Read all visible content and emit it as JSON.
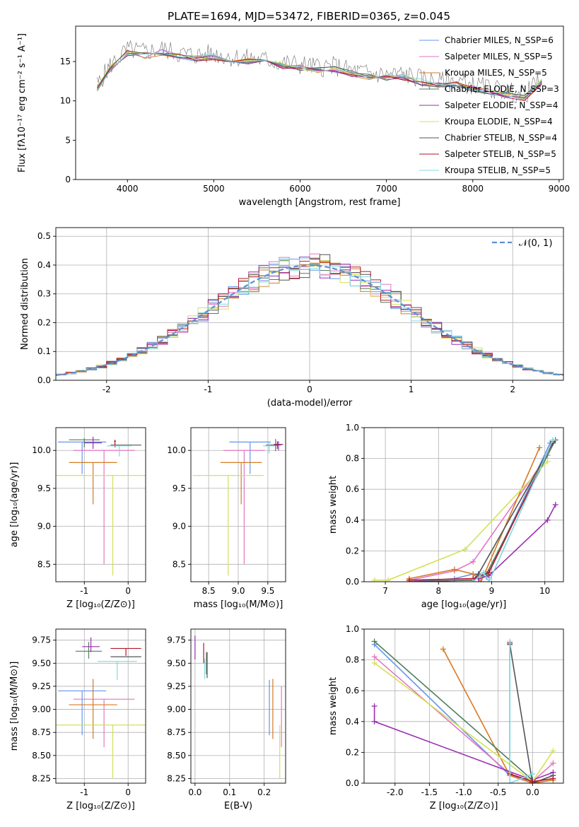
{
  "figure_title": "PLATE=1694, MJD=53472, FIBERID=0365, z=0.045",
  "chart_data": [
    {
      "id": "spectrum",
      "type": "line",
      "xlabel": "wavelength [Angstrom, rest frame]",
      "ylabel": "Flux [fλ10⁻¹⁷ erg cm⁻² s⁻¹ A⁻¹]",
      "xlim": [
        3400,
        9050
      ],
      "ylim": [
        0,
        19.5
      ],
      "xticks": [
        4000,
        5000,
        6000,
        7000,
        8000,
        9000
      ],
      "yticks": [
        0,
        5,
        10,
        15
      ],
      "grid": false,
      "legend_position": "top-right",
      "data_spectrum": {
        "name": "data",
        "color": "#808080",
        "x": [
          3650,
          3800,
          4000,
          4200,
          4400,
          4600,
          4800,
          5000,
          5200,
          5400,
          5600,
          5800,
          6000,
          6200,
          6400,
          6600,
          6800,
          7000,
          7200,
          7400,
          7600,
          7800,
          8000,
          8200,
          8400,
          8600,
          8800
        ],
        "y": [
          12.0,
          14.5,
          16.5,
          16.2,
          16.6,
          16.0,
          15.8,
          16.0,
          15.6,
          15.4,
          15.2,
          14.8,
          14.6,
          14.3,
          14.4,
          13.8,
          13.5,
          13.3,
          13.4,
          12.8,
          12.4,
          12.6,
          12.0,
          11.6,
          11.2,
          10.8,
          12.8
        ]
      },
      "series": [
        {
          "name": "Chabrier MILES, N_SSP=6",
          "color": "#6495ed"
        },
        {
          "name": "Salpeter MILES, N_SSP=5",
          "color": "#e377c2"
        },
        {
          "name": "Kroupa MILES, N_SSP=5",
          "color": "#d67a24"
        },
        {
          "name": "Chabrier ELODIE, N_SSP=3",
          "color": "#4f7f5f"
        },
        {
          "name": "Salpeter ELODIE, N_SSP=4",
          "color": "#9a2fb0"
        },
        {
          "name": "Kroupa ELODIE, N_SSP=4",
          "color": "#d4e157"
        },
        {
          "name": "Chabrier STELIB, N_SSP=4",
          "color": "#555555"
        },
        {
          "name": "Salpeter STELIB, N_SSP=5",
          "color": "#b2182b"
        },
        {
          "name": "Kroupa STELIB, N_SSP=5",
          "color": "#80d8e0"
        }
      ]
    },
    {
      "id": "residuals",
      "type": "histogram",
      "xlabel": "(data-model)/error",
      "ylabel": "Normed distribution",
      "xlim": [
        -2.5,
        2.5
      ],
      "ylim": [
        0,
        0.53
      ],
      "xticks": [
        -2,
        -1,
        0,
        1,
        2
      ],
      "yticks": [
        0.0,
        0.1,
        0.2,
        0.3,
        0.4,
        0.5
      ],
      "grid": true,
      "legend_position": "top-right",
      "legend": "𝒩(0, 1)",
      "reference_curve": {
        "name": "𝒩(0, 1)",
        "color": "#5b8fd6",
        "style": "dashed",
        "mean": 0,
        "sigma": 1
      },
      "histogram_bin_width": 0.1,
      "histogram_jitter_seeds": [
        3,
        7,
        11,
        17,
        23,
        29,
        31,
        37,
        41
      ]
    },
    {
      "id": "age_vs_Z",
      "type": "errorbar",
      "xlabel": "Z [log₁₀(Z/Z⊙)]",
      "ylabel": "age  [log₁₀(age/yr)]",
      "xlim": [
        -1.65,
        0.4
      ],
      "ylim": [
        8.27,
        10.3
      ],
      "xticks": [
        -1,
        0
      ],
      "yticks": [
        8.5,
        9.0,
        9.5,
        10.0
      ],
      "grid": true,
      "points": [
        {
          "x": -1.05,
          "y": 10.11,
          "xerr": 0.55,
          "yerr_lo": 0.42,
          "yerr_hi": 0.0,
          "color": "#6495ed"
        },
        {
          "x": -0.55,
          "y": 10.0,
          "xerr": 0.7,
          "yerr_lo": 1.5,
          "yerr_hi": 0.0,
          "color": "#e377c2"
        },
        {
          "x": -0.8,
          "y": 9.84,
          "xerr": 0.55,
          "yerr_lo": 0.55,
          "yerr_hi": 0.0,
          "color": "#d67a24"
        },
        {
          "x": -1.0,
          "y": 10.14,
          "xerr": 0.35,
          "yerr_lo": 0.1,
          "yerr_hi": 0.02,
          "color": "#4f7f5f"
        },
        {
          "x": -0.8,
          "y": 10.1,
          "xerr": 0.2,
          "yerr_lo": 0.08,
          "yerr_hi": 0.08,
          "color": "#9a2fb0"
        },
        {
          "x": -0.35,
          "y": 9.67,
          "xerr": 1.3,
          "yerr_lo": 1.32,
          "yerr_hi": 0.0,
          "color": "#d4e157"
        },
        {
          "x": -0.05,
          "y": 10.07,
          "xerr": 0.35,
          "yerr_lo": 0.0,
          "yerr_hi": 0.0,
          "color": "#555555"
        },
        {
          "x": -0.3,
          "y": 10.12,
          "xerr": 0.02,
          "yerr_lo": 0.08,
          "yerr_hi": 0.02,
          "color": "#b2182b"
        },
        {
          "x": -0.2,
          "y": 10.06,
          "xerr": 0.28,
          "yerr_lo": 0.14,
          "yerr_hi": 0.0,
          "color": "#80d8e0"
        }
      ]
    },
    {
      "id": "age_vs_mass",
      "type": "errorbar",
      "xlabel": "mass [log₁₀(M/M⊙)]",
      "ylabel": "",
      "xlim": [
        8.2,
        9.8
      ],
      "ylim": [
        8.27,
        10.3
      ],
      "xticks": [
        8.5,
        9.0,
        9.5
      ],
      "yticks": [
        8.5,
        9.0,
        9.5,
        10.0
      ],
      "grid": true,
      "points": [
        {
          "x": 9.2,
          "y": 10.11,
          "xerr": 0.35,
          "yerr_lo": 0.42,
          "yerr_hi": 0.0,
          "color": "#6495ed"
        },
        {
          "x": 9.1,
          "y": 10.0,
          "xerr": 0.35,
          "yerr_lo": 1.5,
          "yerr_hi": 0.0,
          "color": "#e377c2"
        },
        {
          "x": 9.05,
          "y": 9.84,
          "xerr": 0.35,
          "yerr_lo": 0.55,
          "yerr_hi": 0.0,
          "color": "#d67a24"
        },
        {
          "x": 9.63,
          "y": 10.07,
          "xerr": 0.1,
          "yerr_lo": 0.08,
          "yerr_hi": 0.08,
          "color": "#4f7f5f"
        },
        {
          "x": 9.68,
          "y": 10.08,
          "xerr": 0.08,
          "yerr_lo": 0.08,
          "yerr_hi": 0.04,
          "color": "#9a2fb0"
        },
        {
          "x": 8.83,
          "y": 9.67,
          "xerr": 0.6,
          "yerr_lo": 1.32,
          "yerr_hi": 0.0,
          "color": "#d4e157"
        },
        {
          "x": 9.57,
          "y": 10.07,
          "xerr": 0.1,
          "yerr_lo": 0.0,
          "yerr_hi": 0.0,
          "color": "#555555"
        },
        {
          "x": 9.66,
          "y": 10.08,
          "xerr": 0.02,
          "yerr_lo": 0.06,
          "yerr_hi": 0.04,
          "color": "#b2182b"
        },
        {
          "x": 9.52,
          "y": 10.06,
          "xerr": 0.1,
          "yerr_lo": 0.1,
          "yerr_hi": 0.04,
          "color": "#80d8e0"
        }
      ]
    },
    {
      "id": "massweight_vs_age",
      "type": "line",
      "xlabel": "age  [log₁₀(age/yr)]",
      "ylabel": "mass weight",
      "xlim": [
        6.6,
        10.35
      ],
      "ylim": [
        0,
        1.0
      ],
      "xticks": [
        7,
        8,
        9,
        10
      ],
      "yticks": [
        0.0,
        0.2,
        0.4,
        0.6,
        0.8,
        1.0
      ],
      "grid": true,
      "series": [
        {
          "name": "Chabrier MILES",
          "color": "#6495ed",
          "x": [
            7.45,
            8.3,
            8.65,
            8.9,
            10.1
          ],
          "y": [
            0.0,
            0.02,
            0.05,
            0.03,
            0.9
          ]
        },
        {
          "name": "Salpeter MILES",
          "color": "#e377c2",
          "x": [
            7.45,
            8.3,
            8.65,
            10.05
          ],
          "y": [
            0.01,
            0.07,
            0.13,
            0.82
          ]
        },
        {
          "name": "Kroupa MILES",
          "color": "#d67a24",
          "x": [
            7.45,
            8.3,
            8.65,
            8.8,
            9.9
          ],
          "y": [
            0.02,
            0.08,
            0.05,
            0.0,
            0.87
          ]
        },
        {
          "name": "Chabrier ELODIE",
          "color": "#4f7f5f",
          "x": [
            8.65,
            8.9,
            10.2
          ],
          "y": [
            0.02,
            0.05,
            0.92
          ]
        },
        {
          "name": "Salpeter ELODIE",
          "color": "#9a2fb0",
          "x": [
            8.75,
            8.95,
            10.05,
            10.2
          ],
          "y": [
            0.02,
            0.04,
            0.4,
            0.5
          ]
        },
        {
          "name": "Kroupa ELODIE",
          "color": "#d4e157",
          "x": [
            6.8,
            7.05,
            8.5,
            10.05
          ],
          "y": [
            0.01,
            0.01,
            0.21,
            0.78
          ]
        },
        {
          "name": "Chabrier STELIB",
          "color": "#555555",
          "x": [
            7.45,
            8.65,
            8.75,
            10.15
          ],
          "y": [
            0.0,
            0.01,
            0.05,
            0.9
          ]
        },
        {
          "name": "Salpeter STELIB",
          "color": "#b2182b",
          "x": [
            7.45,
            8.65,
            8.95,
            10.15
          ],
          "y": [
            0.01,
            0.02,
            0.06,
            0.91
          ]
        },
        {
          "name": "Kroupa STELIB",
          "color": "#80d8e0",
          "x": [
            8.65,
            8.85,
            8.95,
            10.15
          ],
          "y": [
            0.0,
            0.06,
            0.0,
            0.92
          ]
        }
      ]
    },
    {
      "id": "mass_vs_Z",
      "type": "errorbar",
      "xlabel": "Z [log₁₀(Z/Z⊙)]",
      "ylabel": "mass [log₁₀(M/M⊙)]",
      "xlim": [
        -1.65,
        0.4
      ],
      "ylim": [
        8.2,
        9.87
      ],
      "xticks": [
        -1,
        0
      ],
      "yticks": [
        8.25,
        8.5,
        8.75,
        9.0,
        9.25,
        9.5,
        9.75
      ],
      "grid": true,
      "points": [
        {
          "x": -1.05,
          "y": 9.2,
          "xerr": 0.55,
          "yerr_lo": 0.48,
          "yerr_hi": 0.0,
          "color": "#6495ed"
        },
        {
          "x": -0.55,
          "y": 9.11,
          "xerr": 0.7,
          "yerr_lo": 0.52,
          "yerr_hi": 0.0,
          "color": "#e377c2"
        },
        {
          "x": -0.8,
          "y": 9.05,
          "xerr": 0.55,
          "yerr_lo": 0.37,
          "yerr_hi": 0.28,
          "color": "#d67a24"
        },
        {
          "x": -0.9,
          "y": 9.63,
          "xerr": 0.3,
          "yerr_lo": 0.08,
          "yerr_hi": 0.1,
          "color": "#4f7f5f"
        },
        {
          "x": -0.85,
          "y": 9.68,
          "xerr": 0.2,
          "yerr_lo": 0.06,
          "yerr_hi": 0.1,
          "color": "#9a2fb0"
        },
        {
          "x": -0.35,
          "y": 8.83,
          "xerr": 1.3,
          "yerr_lo": 0.58,
          "yerr_hi": 0.0,
          "color": "#d4e157"
        },
        {
          "x": -0.05,
          "y": 9.57,
          "xerr": 0.35,
          "yerr_lo": 0.0,
          "yerr_hi": 0.0,
          "color": "#555555"
        },
        {
          "x": -0.05,
          "y": 9.66,
          "xerr": 0.35,
          "yerr_lo": 0.08,
          "yerr_hi": 0.0,
          "color": "#b2182b"
        },
        {
          "x": -0.25,
          "y": 9.52,
          "xerr": 0.45,
          "yerr_lo": 0.2,
          "yerr_hi": 0.0,
          "color": "#80d8e0"
        }
      ]
    },
    {
      "id": "mass_vs_ebv",
      "type": "errorbar",
      "xlabel": "E(B-V)",
      "ylabel": "",
      "xlim": [
        -0.012,
        0.262
      ],
      "ylim": [
        8.2,
        9.87
      ],
      "xticks": [
        0.0,
        0.1,
        0.2
      ],
      "yticks": [
        8.25,
        8.5,
        8.75,
        9.0,
        9.25,
        9.5,
        9.75
      ],
      "grid": true,
      "points": [
        {
          "x": 0.215,
          "y": 9.2,
          "xerr": 0.0,
          "yerr_lo": 0.48,
          "yerr_hi": 0.12,
          "color": "#6495ed"
        },
        {
          "x": 0.25,
          "y": 9.11,
          "xerr": 0.0,
          "yerr_lo": 0.52,
          "yerr_hi": 0.14,
          "color": "#e377c2"
        },
        {
          "x": 0.225,
          "y": 9.05,
          "xerr": 0.0,
          "yerr_lo": 0.37,
          "yerr_hi": 0.28,
          "color": "#d67a24"
        },
        {
          "x": 0.033,
          "y": 9.5,
          "xerr": 0.0,
          "yerr_lo": 0.12,
          "yerr_hi": 0.12,
          "color": "#4f7f5f"
        },
        {
          "x": 0.0,
          "y": 9.7,
          "xerr": 0.0,
          "yerr_lo": 0.16,
          "yerr_hi": 0.1,
          "color": "#9a2fb0"
        },
        {
          "x": 0.245,
          "y": 8.83,
          "xerr": 0.0,
          "yerr_lo": 0.58,
          "yerr_hi": 0.0,
          "color": "#d4e157"
        },
        {
          "x": 0.035,
          "y": 9.52,
          "xerr": 0.0,
          "yerr_lo": 0.18,
          "yerr_hi": 0.1,
          "color": "#555555"
        },
        {
          "x": 0.025,
          "y": 9.6,
          "xerr": 0.0,
          "yerr_lo": 0.1,
          "yerr_hi": 0.12,
          "color": "#b2182b"
        },
        {
          "x": 0.028,
          "y": 9.45,
          "xerr": 0.0,
          "yerr_lo": 0.12,
          "yerr_hi": 0.1,
          "color": "#80d8e0"
        }
      ]
    },
    {
      "id": "massweight_vs_Z",
      "type": "line",
      "xlabel": "Z [log₁₀(Z/Z⊙)]",
      "ylabel": "mass weight",
      "xlim": [
        -2.45,
        0.45
      ],
      "ylim": [
        0,
        1.0
      ],
      "xticks": [
        -2.0,
        -1.5,
        -1.0,
        -0.5,
        0.0
      ],
      "yticks": [
        0.0,
        0.2,
        0.4,
        0.6,
        0.8,
        1.0
      ],
      "grid": true,
      "series": [
        {
          "name": "Chabrier MILES",
          "color": "#6495ed",
          "x": [
            -2.3,
            -0.33,
            0.0
          ],
          "y": [
            0.9,
            0.05,
            0.02
          ]
        },
        {
          "name": "Salpeter MILES",
          "color": "#e377c2",
          "x": [
            -2.3,
            -0.33,
            0.0,
            0.3
          ],
          "y": [
            0.82,
            0.06,
            0.01,
            0.13
          ]
        },
        {
          "name": "Kroupa MILES",
          "color": "#d67a24",
          "x": [
            -1.3,
            -0.33,
            0.0,
            0.3
          ],
          "y": [
            0.87,
            0.05,
            0.0,
            0.02
          ]
        },
        {
          "name": "Chabrier ELODIE",
          "color": "#4f7f5f",
          "x": [
            -2.3,
            0.0
          ],
          "y": [
            0.92,
            0.02
          ]
        },
        {
          "name": "Salpeter ELODIE",
          "color": "#9a2fb0",
          "x": [
            -2.3,
            -2.3,
            0.0,
            0.3
          ],
          "y": [
            0.5,
            0.4,
            0.02,
            0.07
          ]
        },
        {
          "name": "Kroupa ELODIE",
          "color": "#d4e157",
          "x": [
            -2.3,
            0.0,
            0.3
          ],
          "y": [
            0.78,
            0.01,
            0.21
          ]
        },
        {
          "name": "Chabrier STELIB",
          "color": "#555555",
          "x": [
            -0.33,
            0.0,
            0.3
          ],
          "y": [
            0.9,
            0.0,
            0.05
          ]
        },
        {
          "name": "Salpeter STELIB",
          "color": "#b2182b",
          "x": [
            -0.33,
            -0.33,
            0.0,
            0.3
          ],
          "y": [
            0.91,
            0.06,
            0.01,
            0.03
          ]
        },
        {
          "name": "Kroupa STELIB",
          "color": "#80d8e0",
          "x": [
            -0.33,
            -0.33,
            0.0
          ],
          "y": [
            0.92,
            0.0,
            0.06
          ]
        }
      ]
    }
  ]
}
